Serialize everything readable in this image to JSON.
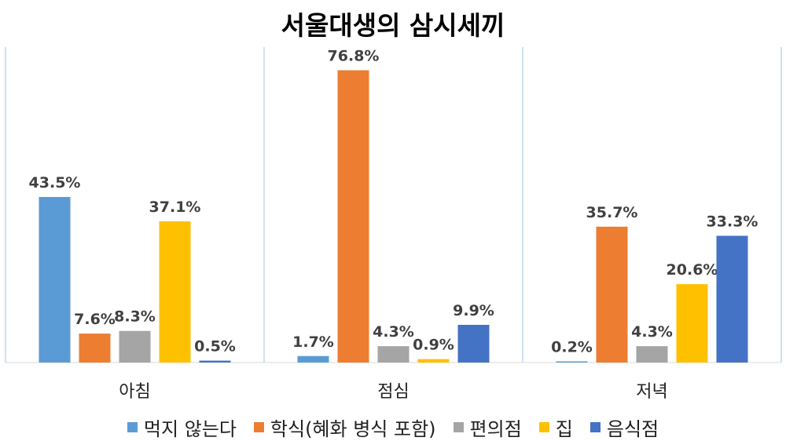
{
  "chart_data": {
    "type": "bar",
    "title": "서울대생의 삼시세끼",
    "categories": [
      "아침",
      "점심",
      "저녁"
    ],
    "series": [
      {
        "name": "먹지 않는다",
        "color": "#5B9BD5",
        "values": [
          43.5,
          1.7,
          0.2
        ],
        "labels": [
          "43.5%",
          "1.7%",
          "0.2%"
        ]
      },
      {
        "name": "학식(혜화 병식 포함)",
        "color": "#ED7D31",
        "values": [
          7.6,
          76.8,
          35.7
        ],
        "labels": [
          "7.6%",
          "76.8%",
          "35.7%"
        ]
      },
      {
        "name": "편의점",
        "color": "#A5A5A5",
        "values": [
          8.3,
          4.3,
          4.3
        ],
        "labels": [
          "8.3%",
          "4.3%",
          "4.3%"
        ]
      },
      {
        "name": "집",
        "color": "#FFC000",
        "values": [
          37.1,
          0.9,
          20.6
        ],
        "labels": [
          "37.1%",
          "0.9%",
          "20.6%"
        ]
      },
      {
        "name": "음식점",
        "color": "#4472C4",
        "values": [
          0.5,
          9.9,
          33.3
        ],
        "labels": [
          "0.5%",
          "9.9%",
          "33.3%"
        ]
      }
    ],
    "ylim": [
      0,
      80
    ],
    "gridlines": false,
    "legend_position": "bottom"
  }
}
